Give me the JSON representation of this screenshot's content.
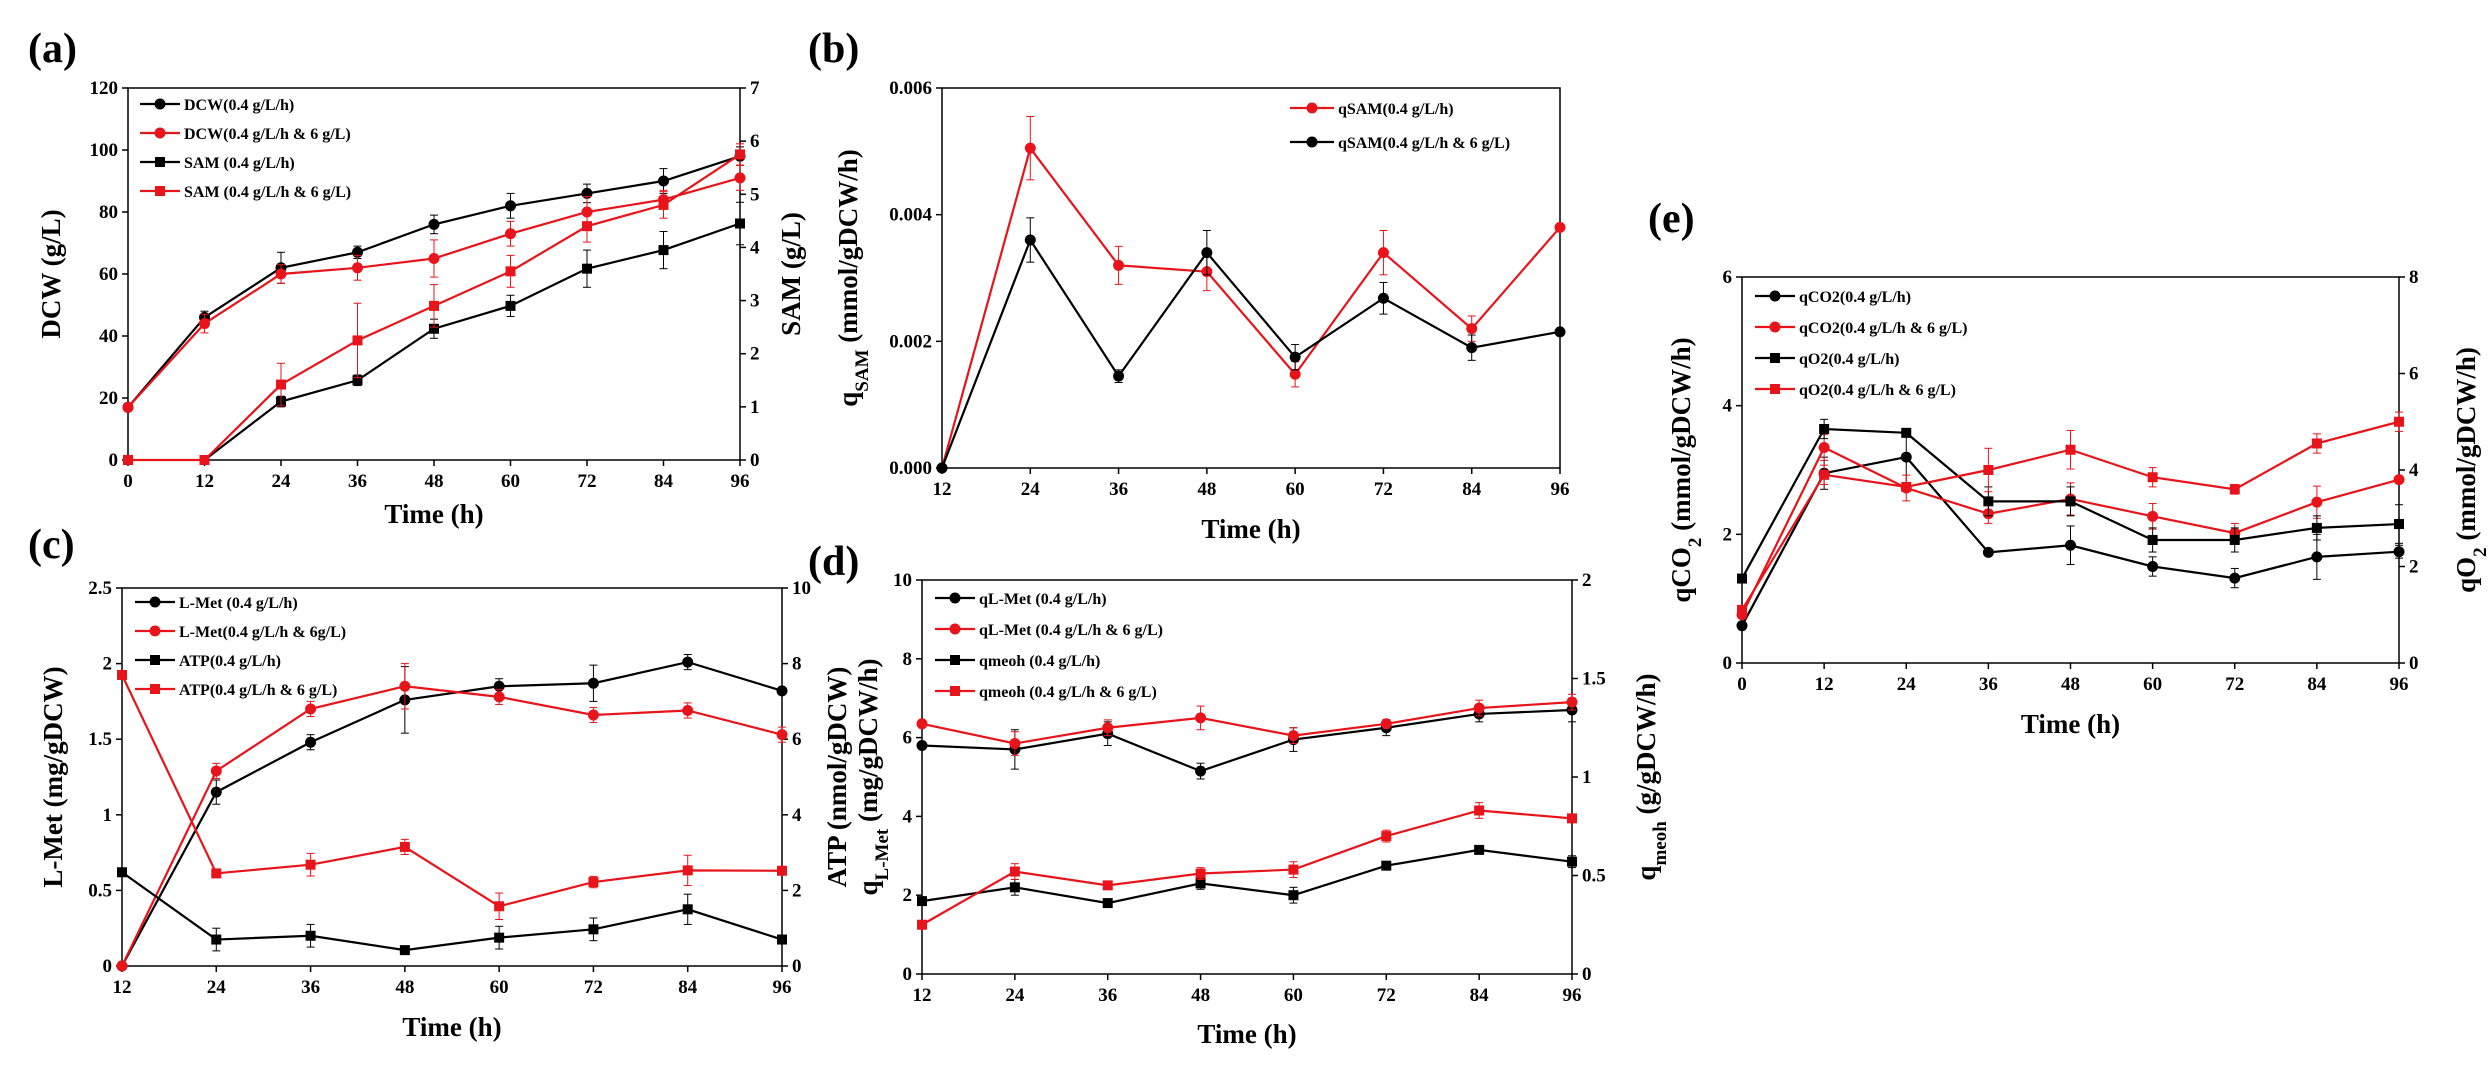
{
  "chart_data": [
    {
      "panel": "(a)",
      "type": "line",
      "xlabel": "Time (h)",
      "ylabel": "DCW (g/L)",
      "ylabel_right": "SAM (g/L)",
      "xlim": [
        0,
        96
      ],
      "ylim": [
        0,
        120
      ],
      "ylim_right": [
        0,
        7
      ],
      "xticks": [
        "0",
        "12",
        "24",
        "36",
        "48",
        "60",
        "72",
        "84",
        "96"
      ],
      "yticks": [
        "0",
        "20",
        "40",
        "60",
        "80",
        "100",
        "120"
      ],
      "yticks_right": [
        "0",
        "1",
        "2",
        "3",
        "4",
        "5",
        "6",
        "7"
      ],
      "legend_position": "top-left",
      "series": [
        {
          "name": "DCW(0.4 g/L/h)",
          "color": "#000000",
          "marker": "circle",
          "axis": "left",
          "x": [
            0,
            12,
            24,
            36,
            48,
            60,
            72,
            84,
            96
          ],
          "values": [
            17,
            46,
            62,
            67,
            76,
            82,
            86,
            90,
            98
          ],
          "err": [
            1,
            2,
            5,
            2,
            3,
            4,
            3,
            4,
            3
          ]
        },
        {
          "name": "DCW(0.4 g/L/h & 6 g/L)",
          "color": "#e8141b",
          "marker": "circle",
          "axis": "left",
          "x": [
            0,
            12,
            24,
            36,
            48,
            60,
            72,
            84,
            96
          ],
          "values": [
            17,
            44,
            60,
            62,
            65,
            73,
            80,
            84,
            91
          ],
          "err": [
            1,
            3,
            3,
            4,
            6,
            4,
            5,
            3,
            4
          ]
        },
        {
          "name": "SAM (0.4 g/L/h)",
          "color": "#000000",
          "marker": "square",
          "axis": "right",
          "x": [
            12,
            24,
            36,
            48,
            60,
            72,
            84,
            96
          ],
          "values": [
            0,
            1.1,
            1.5,
            2.47,
            2.9,
            3.6,
            3.95,
            4.45
          ],
          "err": [
            0,
            0.1,
            0.1,
            0.18,
            0.2,
            0.35,
            0.35,
            0.4
          ]
        },
        {
          "name": "SAM (0.4 g/L/h & 6 g/L)",
          "color": "#e8141b",
          "marker": "square",
          "axis": "right",
          "x": [
            0,
            12,
            24,
            36,
            48,
            60,
            72,
            84,
            96
          ],
          "values": [
            0,
            0,
            1.42,
            2.25,
            2.9,
            3.55,
            4.4,
            4.8,
            5.75
          ],
          "err": [
            0,
            0,
            0.4,
            0.7,
            0.4,
            0.3,
            0.3,
            0.25,
            0.2
          ]
        }
      ]
    },
    {
      "panel": "(b)",
      "type": "line",
      "xlabel": "Time (h)",
      "ylabel_main": "q",
      "ylabel_sub": "SAM",
      "ylabel_rest": " (mmol/gDCW/h)",
      "xlim": [
        12,
        96
      ],
      "ylim": [
        0,
        0.006
      ],
      "xticks": [
        "12",
        "24",
        "36",
        "48",
        "60",
        "72",
        "84",
        "96"
      ],
      "yticks": [
        "0.000",
        "0.002",
        "0.004",
        "0.006"
      ],
      "legend_position": "top-right",
      "series": [
        {
          "name": "qSAM(0.4 g/L/h)",
          "color": "#e8141b",
          "marker": "circle",
          "x": [
            12,
            24,
            36,
            48,
            60,
            72,
            84,
            96
          ],
          "values": [
            0,
            0.00505,
            0.0032,
            0.0031,
            0.00148,
            0.0034,
            0.0022,
            0.0038
          ],
          "err": [
            0,
            0.0005,
            0.0003,
            0.0003,
            0.0002,
            0.00035,
            0.0002,
            0
          ]
        },
        {
          "name": "qSAM(0.4 g/L/h & 6 g/L)",
          "color": "#000000",
          "marker": "circle",
          "x": [
            12,
            24,
            36,
            48,
            60,
            72,
            84,
            96
          ],
          "values": [
            0,
            0.0036,
            0.00145,
            0.0034,
            0.00175,
            0.00268,
            0.0019,
            0.00215
          ],
          "err": [
            0,
            0.00035,
            0.0001,
            0.00035,
            0.0002,
            0.00025,
            0.0002,
            0
          ]
        }
      ]
    },
    {
      "panel": "(c)",
      "type": "line",
      "xlabel": "Time (h)",
      "ylabel": "L-Met (mg/gDCW)",
      "ylabel_right": "ATP (nmol/gDCW)",
      "xlim": [
        12,
        96
      ],
      "ylim": [
        0,
        2.5
      ],
      "ylim_right": [
        0,
        10
      ],
      "xticks": [
        "12",
        "24",
        "36",
        "48",
        "60",
        "72",
        "84",
        "96"
      ],
      "yticks": [
        "0",
        "0.5",
        "1",
        "1.5",
        "2",
        "2.5"
      ],
      "yticks_right": [
        "0",
        "2",
        "4",
        "6",
        "8",
        "10"
      ],
      "legend_position": "top-left",
      "series": [
        {
          "name": "L-Met (0.4 g/L/h)",
          "color": "#000000",
          "marker": "circle",
          "axis": "left",
          "x": [
            12,
            24,
            36,
            48,
            60,
            72,
            84,
            96
          ],
          "values": [
            0,
            1.15,
            1.48,
            1.76,
            1.85,
            1.87,
            2.01,
            1.82
          ],
          "err": [
            0,
            0.08,
            0.05,
            0.22,
            0.05,
            0.12,
            0.05,
            0
          ]
        },
        {
          "name": "L-Met(0.4 g/L/h & 6g/L)",
          "color": "#e8141b",
          "marker": "circle",
          "axis": "left",
          "x": [
            12,
            24,
            36,
            48,
            60,
            72,
            84,
            96
          ],
          "values": [
            0,
            1.29,
            1.7,
            1.85,
            1.78,
            1.66,
            1.69,
            1.53
          ],
          "err": [
            0,
            0.05,
            0.05,
            0.15,
            0.05,
            0.05,
            0.05,
            0.05
          ]
        },
        {
          "name": "ATP(0.4 g/L/h)",
          "color": "#000000",
          "marker": "square",
          "axis": "right",
          "x": [
            12,
            24,
            36,
            48,
            60,
            72,
            84,
            96
          ],
          "values": [
            2.48,
            0.7,
            0.8,
            0.42,
            0.75,
            0.97,
            1.5,
            0.7
          ],
          "err": [
            0,
            0.3,
            0.3,
            0,
            0.3,
            0.3,
            0.4,
            0
          ]
        },
        {
          "name": "ATP(0.4 g/L/h & 6 g/L)",
          "color": "#e8141b",
          "marker": "square",
          "axis": "right",
          "x": [
            12,
            24,
            36,
            48,
            60,
            72,
            84,
            96
          ],
          "values": [
            7.7,
            2.45,
            2.68,
            3.15,
            1.58,
            2.22,
            2.53,
            2.52
          ],
          "err": [
            0,
            0.1,
            0.3,
            0.2,
            0.35,
            0.15,
            0.4,
            0
          ]
        }
      ]
    },
    {
      "panel": "(d)",
      "type": "line",
      "xlabel": "Time (h)",
      "ylabel_main": "q",
      "ylabel_sub": "L-Met",
      "ylabel_rest": " (mg/gDCW/h)",
      "ylabel_right_main": "q",
      "ylabel_right_sub": "meoh",
      "ylabel_right_rest": " (g/gDCW/h)",
      "xlim": [
        12,
        96
      ],
      "ylim": [
        0,
        10
      ],
      "ylim_right": [
        0,
        2
      ],
      "xticks": [
        "12",
        "24",
        "36",
        "48",
        "60",
        "72",
        "84",
        "96"
      ],
      "yticks": [
        "0",
        "2",
        "4",
        "6",
        "8",
        "10"
      ],
      "yticks_right": [
        "0",
        "0.5",
        "1",
        "1.5",
        "2"
      ],
      "legend_position": "top-left",
      "series": [
        {
          "name": "qL-Met (0.4 g/L/h)",
          "color": "#000000",
          "marker": "circle",
          "axis": "left",
          "x": [
            12,
            24,
            36,
            48,
            60,
            72,
            84,
            96
          ],
          "values": [
            5.8,
            5.7,
            6.1,
            5.15,
            5.95,
            6.25,
            6.6,
            6.7
          ],
          "err": [
            0,
            0.5,
            0.3,
            0.2,
            0.3,
            0.2,
            0.2,
            0.3
          ]
        },
        {
          "name": "qL-Met (0.4 g/L/h & 6 g/L)",
          "color": "#e8141b",
          "marker": "circle",
          "axis": "left",
          "x": [
            12,
            24,
            36,
            48,
            60,
            72,
            84,
            96
          ],
          "values": [
            6.35,
            5.85,
            6.25,
            6.5,
            6.05,
            6.35,
            6.75,
            6.9
          ],
          "err": [
            0,
            0.3,
            0.2,
            0.3,
            0.2,
            0.1,
            0.2,
            0.2
          ]
        },
        {
          "name": "qmeoh (0.4 g/L/h)",
          "color": "#000000",
          "marker": "square",
          "axis": "right",
          "x": [
            12,
            24,
            36,
            48,
            60,
            72,
            84,
            96
          ],
          "values": [
            0.37,
            0.44,
            0.36,
            0.46,
            0.4,
            0.55,
            0.63,
            0.57
          ],
          "err": [
            0,
            0.04,
            0,
            0.03,
            0.04,
            0,
            0.02,
            0.03
          ]
        },
        {
          "name": "qmeoh (0.4 g/L/h & 6 g/L)",
          "color": "#e8141b",
          "marker": "square",
          "axis": "right",
          "x": [
            12,
            24,
            36,
            48,
            60,
            72,
            84,
            96
          ],
          "values": [
            0.25,
            0.52,
            0.45,
            0.51,
            0.53,
            0.7,
            0.83,
            0.79
          ],
          "err": [
            0,
            0.04,
            0,
            0.03,
            0.04,
            0.03,
            0.04,
            0
          ]
        }
      ]
    },
    {
      "panel": "(e)",
      "type": "line",
      "xlabel": "Time (h)",
      "ylabel_main": "qCO",
      "ylabel_sub": "2",
      "ylabel_rest": " (mmol/gDCW/h)",
      "ylabel_right_main": "qO",
      "ylabel_right_sub": "2",
      "ylabel_right_rest": " (mmol/gDCW/h)",
      "xlim": [
        0,
        96
      ],
      "ylim": [
        0,
        6
      ],
      "ylim_right": [
        0,
        8
      ],
      "xticks": [
        "0",
        "12",
        "24",
        "36",
        "48",
        "60",
        "72",
        "84",
        "96"
      ],
      "yticks": [
        "0",
        "2",
        "4",
        "6"
      ],
      "yticks_right": [
        "0",
        "2",
        "4",
        "6",
        "8"
      ],
      "legend_position": "top-left",
      "series": [
        {
          "name": "qCO2(0.4 g/L/h)",
          "color": "#000000",
          "marker": "circle",
          "axis": "left",
          "x": [
            0,
            12,
            24,
            36,
            48,
            60,
            72,
            84,
            96
          ],
          "values": [
            0.58,
            2.95,
            3.2,
            1.72,
            1.83,
            1.5,
            1.32,
            1.65,
            1.73
          ],
          "err": [
            0,
            0.25,
            0.4,
            0,
            0.3,
            0.15,
            0.15,
            0.35,
            0.1
          ]
        },
        {
          "name": "qCO2(0.4 g/L/h & 6 g/L)",
          "color": "#e8141b",
          "marker": "circle",
          "axis": "left",
          "x": [
            0,
            12,
            24,
            36,
            48,
            60,
            72,
            84,
            96
          ],
          "values": [
            0.75,
            3.35,
            2.72,
            2.32,
            2.55,
            2.28,
            2.02,
            2.5,
            2.85
          ],
          "err": [
            0,
            0.2,
            0.2,
            0.15,
            0.25,
            0.2,
            0.15,
            0.25,
            0.05
          ]
        },
        {
          "name": "qO2(0.4 g/L/h)",
          "color": "#000000",
          "marker": "square",
          "axis": "right",
          "x": [
            0,
            12,
            24,
            36,
            48,
            60,
            72,
            84,
            96
          ],
          "values": [
            1.75,
            4.85,
            4.77,
            3.35,
            3.35,
            2.55,
            2.55,
            2.8,
            2.88
          ],
          "err": [
            0,
            0.2,
            0,
            0.3,
            0.3,
            0.25,
            0.25,
            0.25,
            0.4
          ]
        },
        {
          "name": "qO2(0.4 g/L/h & 6 g/L)",
          "color": "#e8141b",
          "marker": "square",
          "axis": "right",
          "x": [
            0,
            12,
            24,
            36,
            48,
            60,
            72,
            84,
            96
          ],
          "values": [
            1.1,
            3.9,
            3.65,
            4.0,
            4.42,
            3.85,
            3.6,
            4.55,
            5.0
          ],
          "err": [
            0,
            0.2,
            0,
            0.45,
            0.4,
            0.2,
            0.1,
            0.2,
            0.2
          ]
        }
      ]
    }
  ]
}
